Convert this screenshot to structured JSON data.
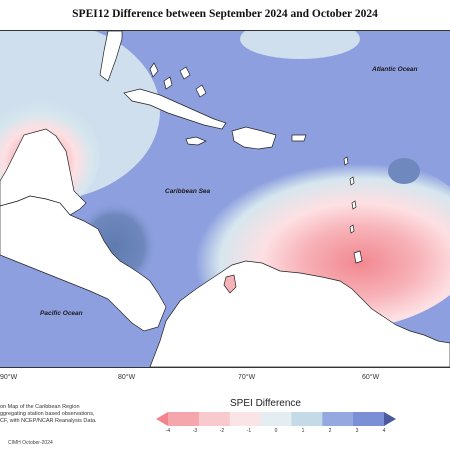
{
  "title": "SPEI12 Difference between September 2024 and October 2024",
  "map_labels": {
    "atlantic": "Atlantic Ocean",
    "caribbean": "Caribbean Sea",
    "pacific": "Pacific Ocean"
  },
  "longitude_labels": [
    "90°W",
    "80°W",
    "70°W",
    "60°W"
  ],
  "description_lines": [
    "on Map of the Caribbean Region",
    "ggregating station based observations,",
    "CF, with NCEP/NCAR Reanalysis Data."
  ],
  "legend": {
    "title": "SPEI Difference",
    "ticks": [
      "-4",
      "-3",
      "-2",
      "-1",
      "0",
      "1",
      "2",
      "3",
      "4"
    ],
    "colors": [
      "#f2838c",
      "#f5a6ad",
      "#f8c9cd",
      "#fbe4e6",
      "#e4eef2",
      "#c4dae6",
      "#95a9e0",
      "#7a8fd6",
      "#4b5aa0"
    ]
  },
  "credit": "CIMH October-2024",
  "colors": {
    "dry_strong": "#f28790",
    "dry_mid": "#f7b2b8",
    "dry_light": "#fde0e3",
    "neutral": "#d6e6ee",
    "wet_base": "#8d9fdf",
    "wet_strong": "#5e7bb0",
    "land": "#ffffff"
  }
}
